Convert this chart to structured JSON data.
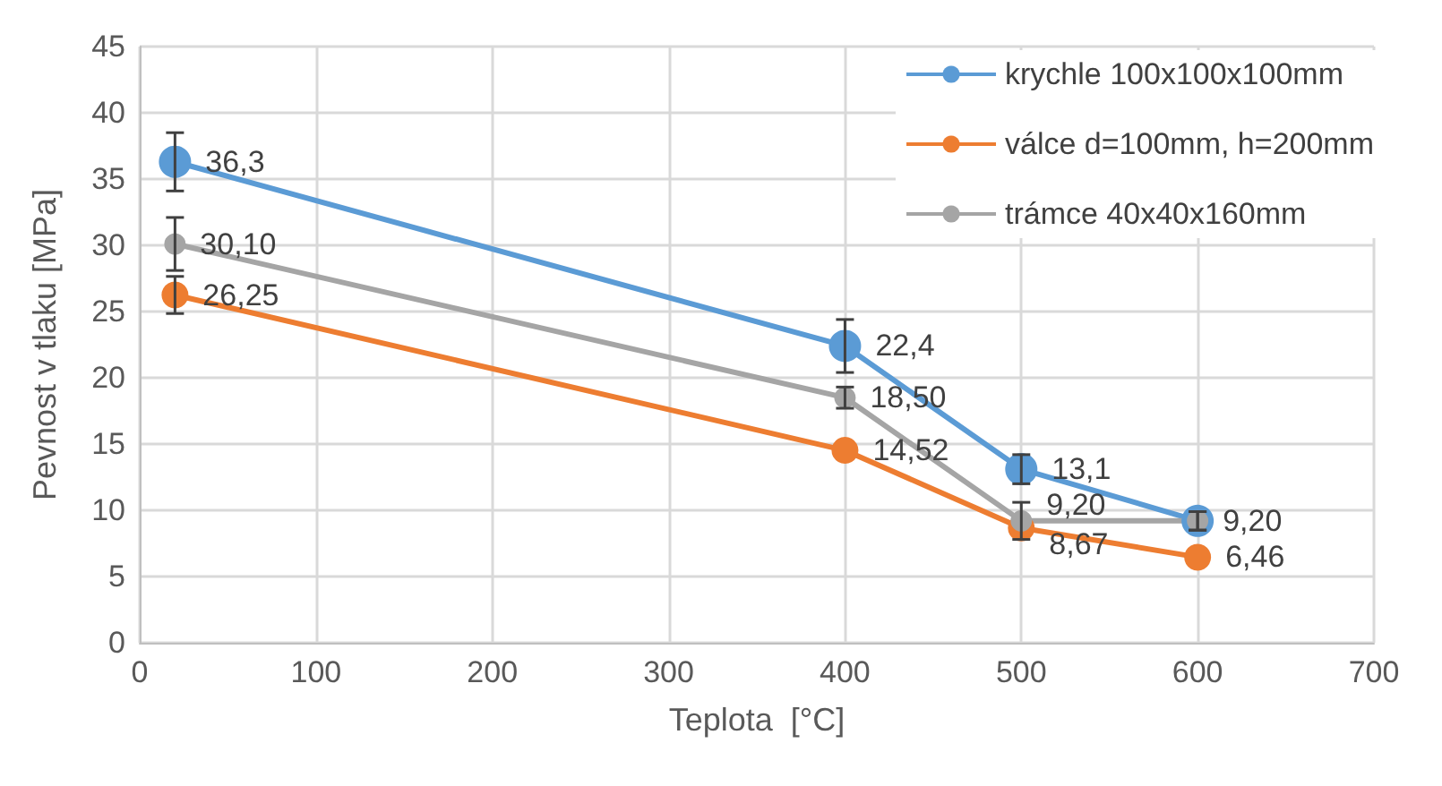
{
  "chart_data": {
    "type": "line",
    "xlabel": "Teplota  [°C]",
    "ylabel": "Pevnost v tlaku [MPa]",
    "x": [
      20,
      400,
      500,
      600
    ],
    "series": [
      {
        "name": "krychle 100x100x100mm",
        "color": "#5b9bd5",
        "values": [
          36.3,
          22.4,
          13.1,
          9.2
        ],
        "errors": [
          2.2,
          2,
          1.1,
          0.7
        ],
        "value_labels": [
          "36,3",
          "22,4",
          "13,1",
          null
        ]
      },
      {
        "name": "válce d=100mm, h=200mm",
        "color": "#ed7d31",
        "values": [
          26.25,
          14.52,
          8.67,
          6.46
        ],
        "errors": [
          1.4,
          null,
          null,
          null
        ],
        "value_labels": [
          "26,25",
          "14,52",
          "8,67",
          "6,46"
        ]
      },
      {
        "name": "trámce 40x40x160mm",
        "color": "#a5a5a5",
        "values": [
          30.1,
          18.5,
          9.2,
          9.2
        ],
        "errors": [
          2,
          0.8,
          1.4,
          0.7
        ],
        "value_labels": [
          "30,10",
          "18,50",
          "9,20",
          "9,20"
        ]
      }
    ],
    "xlim": [
      0,
      700
    ],
    "xticks": [
      0,
      100,
      200,
      300,
      400,
      500,
      600,
      700
    ],
    "ylim": [
      0,
      45
    ],
    "yticks": [
      0,
      5,
      10,
      15,
      20,
      25,
      30,
      35,
      40,
      45
    ],
    "grid": true,
    "legend": "top right",
    "marker": "circle",
    "line_style": "solid"
  }
}
